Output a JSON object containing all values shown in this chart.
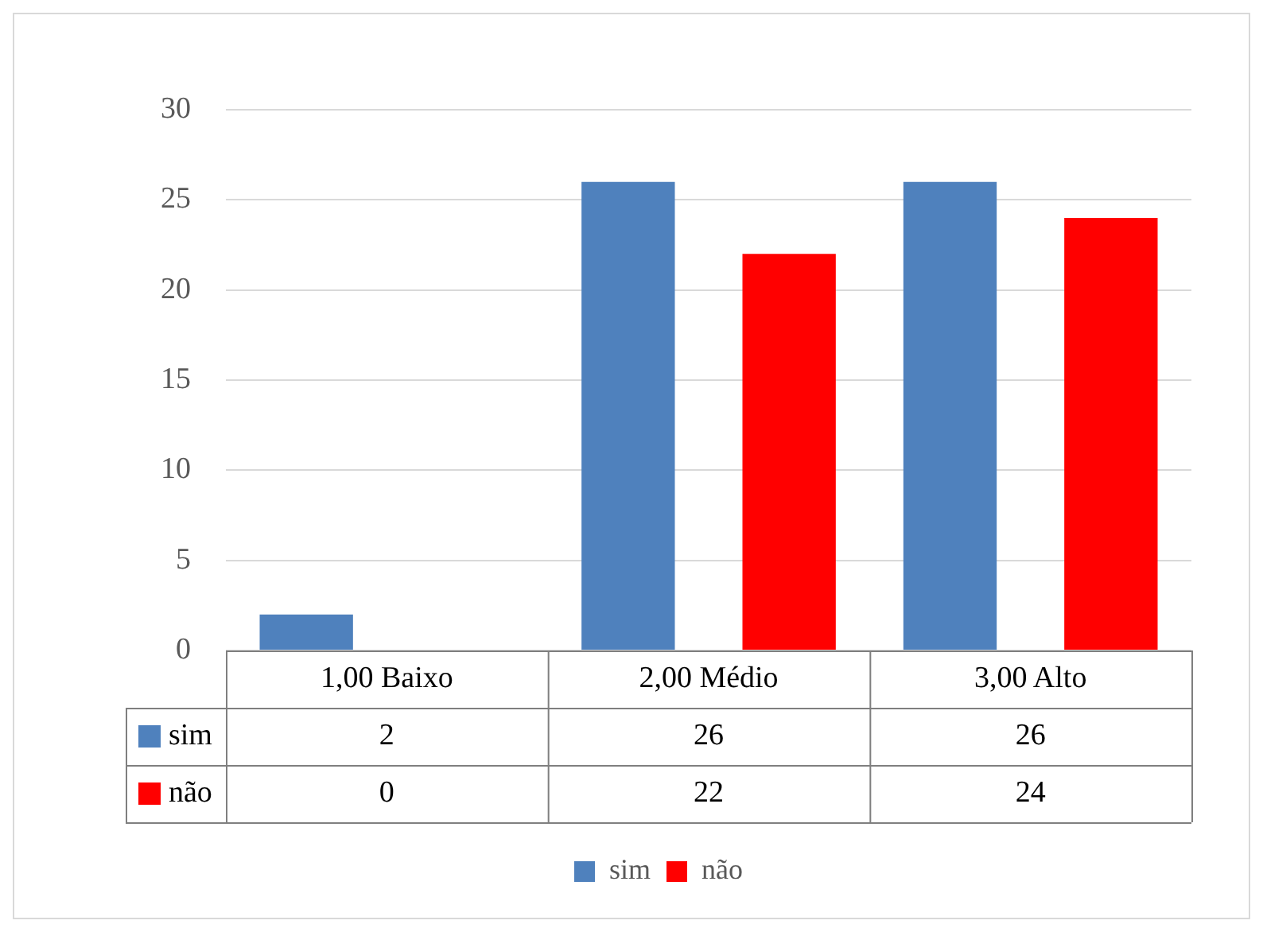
{
  "chart_data": {
    "type": "bar",
    "categories": [
      "1,00 Baixo",
      "2,00 Médio",
      "3,00 Alto"
    ],
    "series": [
      {
        "name": "sim",
        "color": "#4f81bd",
        "values": [
          2,
          26,
          26
        ]
      },
      {
        "name": "não",
        "color": "#ff0000",
        "values": [
          0,
          22,
          24
        ]
      }
    ],
    "ylim": [
      0,
      30
    ],
    "yticks": [
      0,
      5,
      10,
      15,
      20,
      25,
      30
    ],
    "grid": "y",
    "legend": "bottom",
    "data_labels": true
  }
}
